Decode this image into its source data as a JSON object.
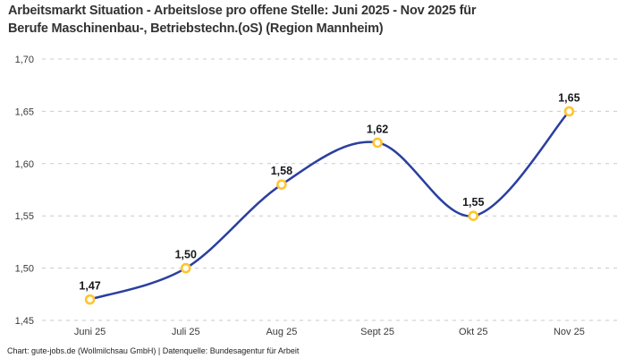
{
  "header": {
    "title_lines": [
      "Arbeitsmarkt Situation - Arbeitslose pro offene Stelle: Juni 2025 - Nov 2025 für",
      "Berufe Maschinenbau-, Betriebstechn.(oS) (Region Mannheim)"
    ]
  },
  "footer": {
    "credit": "Chart: gute-jobs.de (Wollmilchsau GmbH) | Datenquelle: Bundesagentur für Arbeit"
  },
  "chart_data": {
    "type": "line",
    "title": "Arbeitsmarkt Situation - Arbeitslose pro offene Stelle: Juni 2025 - Nov 2025 für Berufe Maschinenbau-, Betriebstechn.(oS) (Region Mannheim)",
    "categories": [
      "Juni 25",
      "Juli 25",
      "Aug 25",
      "Sept 25",
      "Okt 25",
      "Nov 25"
    ],
    "values": [
      1.47,
      1.5,
      1.58,
      1.62,
      1.55,
      1.65
    ],
    "point_labels": [
      "1,47",
      "1,50",
      "1,58",
      "1,62",
      "1,55",
      "1,65"
    ],
    "xlabel": "",
    "ylabel": "",
    "ylim": [
      1.45,
      1.7
    ],
    "yticks": [
      {
        "value": 1.45,
        "label": "1,45"
      },
      {
        "value": 1.5,
        "label": "1,50"
      },
      {
        "value": 1.55,
        "label": "1,55"
      },
      {
        "value": 1.6,
        "label": "1,60"
      },
      {
        "value": 1.65,
        "label": "1,65"
      },
      {
        "value": 1.7,
        "label": "1,70"
      }
    ],
    "grid": "horizontal-dashed",
    "legend": "none",
    "line_style": "smooth-spline",
    "colors": {
      "line": "#2a3f9e",
      "marker_stroke": "#ffc52e",
      "marker_fill": "#ffffff",
      "grid": "#c9c9c9",
      "tick_text": "#3a3a3a",
      "data_label": "#17191c",
      "title_text": "#333333",
      "footer_text": "#222222",
      "background": "#ffffff"
    }
  }
}
